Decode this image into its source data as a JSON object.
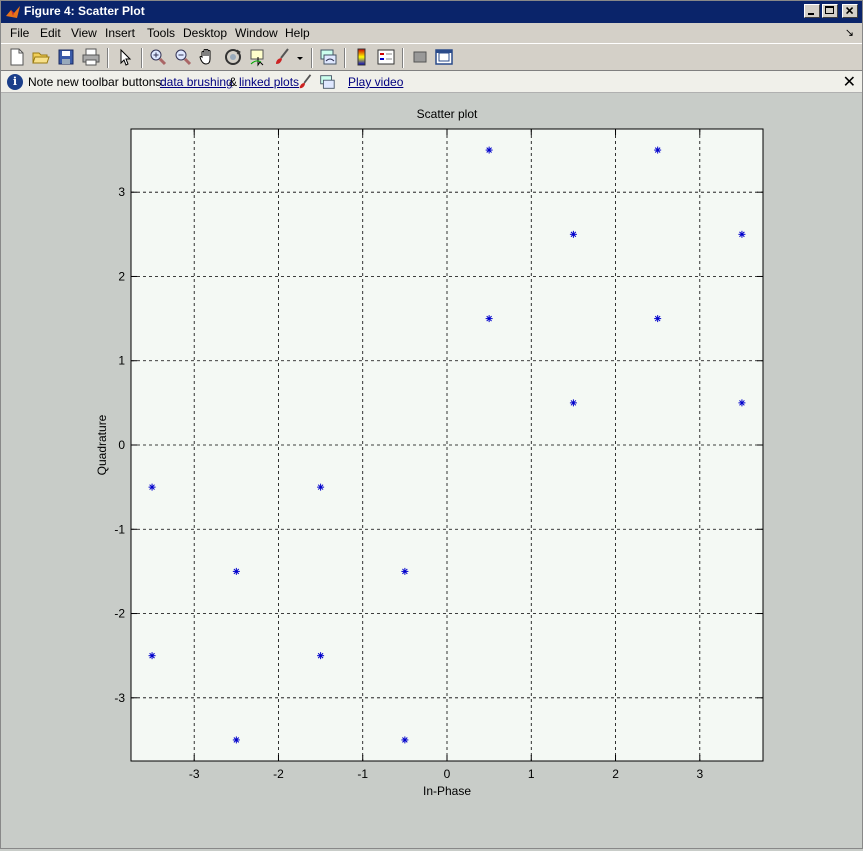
{
  "window": {
    "title": "Figure 4: Scatter Plot"
  },
  "menu": {
    "items": [
      "File",
      "Edit",
      "View",
      "Insert",
      "Tools",
      "Desktop",
      "Window",
      "Help"
    ]
  },
  "toolbar": {
    "icons": [
      "new-figure-icon",
      "open-file-icon",
      "save-icon",
      "print-icon",
      "edit-plot-icon",
      "zoom-in-icon",
      "zoom-out-icon",
      "pan-icon",
      "rotate-3d-icon",
      "data-cursor-icon",
      "brush-icon",
      "link-plot-icon",
      "colorbar-icon",
      "legend-icon",
      "hide-plot-tools-icon",
      "show-plot-tools-icon"
    ]
  },
  "infobar": {
    "message": "Note new toolbar buttons:",
    "link_brushing": "data brushing",
    "amp": "&",
    "link_linked": "linked plots",
    "play_video": "Play video",
    "close": "✕"
  },
  "chart_data": {
    "type": "scatter",
    "title": "Scatter plot",
    "xlabel": "In-Phase",
    "ylabel": "Quadrature",
    "xlim": [
      -3.75,
      3.75
    ],
    "ylim": [
      -3.75,
      3.75
    ],
    "xticks": [
      -3,
      -2,
      -1,
      0,
      1,
      2,
      3
    ],
    "yticks": [
      -3,
      -2,
      -1,
      0,
      1,
      2,
      3
    ],
    "grid": true,
    "marker": "*",
    "color": "#0000cc",
    "points": [
      {
        "x": 0.5,
        "y": 3.5
      },
      {
        "x": 2.5,
        "y": 3.5
      },
      {
        "x": 1.5,
        "y": 2.5
      },
      {
        "x": 3.5,
        "y": 2.5
      },
      {
        "x": 0.5,
        "y": 1.5
      },
      {
        "x": 2.5,
        "y": 1.5
      },
      {
        "x": 1.5,
        "y": 0.5
      },
      {
        "x": 3.5,
        "y": 0.5
      },
      {
        "x": -3.5,
        "y": -0.5
      },
      {
        "x": -1.5,
        "y": -0.5
      },
      {
        "x": -2.5,
        "y": -1.5
      },
      {
        "x": -0.5,
        "y": -1.5
      },
      {
        "x": -3.5,
        "y": -2.5
      },
      {
        "x": -1.5,
        "y": -2.5
      },
      {
        "x": -2.5,
        "y": -3.5
      },
      {
        "x": -0.5,
        "y": -3.5
      }
    ]
  }
}
